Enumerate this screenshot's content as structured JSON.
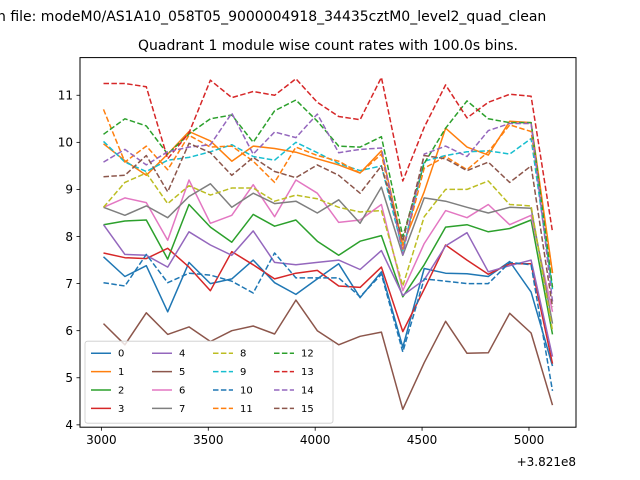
{
  "chart_data": {
    "type": "line",
    "suptitle": "n file: modeM0/AS1A10_058T05_9000004918_34435cztM0_level2_quad_clean",
    "title": "Quadrant 1 module wise count rates with 100.0s bins.",
    "xlabel": "",
    "ylabel": "",
    "x_offset_label": "+3.821e8",
    "xlim": [
      2900,
      5220
    ],
    "ylim": [
      3.95,
      11.8
    ],
    "xticks": [
      3000,
      3500,
      4000,
      4500,
      5000
    ],
    "yticks": [
      4,
      5,
      6,
      7,
      8,
      9,
      10,
      11
    ],
    "x": [
      3010,
      3110,
      3210,
      3310,
      3410,
      3510,
      3610,
      3710,
      3810,
      3910,
      4010,
      4110,
      4210,
      4310,
      4410,
      4510,
      4610,
      4710,
      4810,
      4910,
      5010,
      5110
    ],
    "series": [
      {
        "name": "0",
        "color": "#1f77b4",
        "dash": "solid",
        "values": [
          7.57,
          7.15,
          7.38,
          6.4,
          7.45,
          7.0,
          7.1,
          7.5,
          7.02,
          6.77,
          7.1,
          7.42,
          6.7,
          7.25,
          5.65,
          7.32,
          7.22,
          7.21,
          7.15,
          7.47,
          6.82,
          5.25
        ]
      },
      {
        "name": "1",
        "color": "#ff7f0e",
        "dash": "solid",
        "values": [
          9.97,
          9.61,
          9.3,
          9.75,
          10.23,
          10.03,
          9.6,
          9.92,
          9.87,
          9.79,
          9.65,
          9.52,
          9.35,
          9.82,
          7.82,
          8.95,
          10.3,
          9.9,
          9.73,
          10.45,
          10.42,
          7.23
        ]
      },
      {
        "name": "2",
        "color": "#2ca02c",
        "dash": "solid",
        "values": [
          8.25,
          8.33,
          8.35,
          7.52,
          8.68,
          8.2,
          7.88,
          8.47,
          8.22,
          8.35,
          7.9,
          7.6,
          7.9,
          8.02,
          6.72,
          7.4,
          8.2,
          8.25,
          8.1,
          8.17,
          8.35,
          5.92
        ]
      },
      {
        "name": "3",
        "color": "#d62728",
        "dash": "solid",
        "values": [
          7.65,
          7.55,
          7.53,
          7.75,
          7.35,
          6.85,
          7.68,
          7.4,
          7.1,
          7.22,
          7.28,
          6.95,
          6.92,
          7.35,
          5.98,
          6.88,
          7.82,
          7.5,
          7.2,
          7.42,
          7.42,
          5.3
        ]
      },
      {
        "name": "4",
        "color": "#9467bd",
        "dash": "solid",
        "values": [
          8.25,
          7.62,
          7.6,
          7.35,
          8.1,
          7.82,
          7.6,
          8.12,
          7.45,
          7.4,
          7.45,
          7.5,
          7.3,
          7.7,
          6.75,
          7.08,
          7.8,
          8.08,
          7.25,
          7.38,
          7.5,
          5.45
        ]
      },
      {
        "name": "5",
        "color": "#8c564b",
        "dash": "solid",
        "values": [
          6.15,
          5.7,
          6.38,
          5.92,
          6.08,
          5.77,
          6.0,
          6.1,
          5.93,
          6.65,
          6.0,
          5.7,
          5.88,
          5.97,
          4.33,
          5.32,
          6.2,
          5.52,
          5.53,
          6.37,
          5.95,
          4.42
        ]
      },
      {
        "name": "6",
        "color": "#e377c2",
        "dash": "solid",
        "values": [
          8.62,
          8.82,
          8.72,
          7.92,
          9.2,
          8.28,
          8.45,
          9.1,
          8.42,
          9.2,
          8.92,
          8.3,
          8.35,
          8.68,
          6.85,
          7.85,
          8.55,
          8.4,
          8.68,
          8.25,
          8.45,
          6.4
        ]
      },
      {
        "name": "7",
        "color": "#7f7f7f",
        "dash": "solid",
        "values": [
          8.62,
          8.45,
          8.65,
          8.4,
          8.85,
          9.12,
          8.62,
          8.92,
          8.7,
          8.75,
          8.5,
          8.78,
          8.28,
          9.05,
          7.6,
          8.82,
          8.75,
          8.62,
          8.5,
          8.62,
          8.6,
          6.15
        ]
      },
      {
        "name": "8",
        "color": "#bcbd22",
        "dash": "dashed",
        "values": [
          8.62,
          9.15,
          9.35,
          8.7,
          9.08,
          8.88,
          9.03,
          9.03,
          8.75,
          8.88,
          8.8,
          8.62,
          8.52,
          8.55,
          6.95,
          8.42,
          9.0,
          9.0,
          9.18,
          8.68,
          8.65,
          6.0
        ]
      },
      {
        "name": "9",
        "color": "#17becf",
        "dash": "dashed",
        "values": [
          10.02,
          9.58,
          9.38,
          9.62,
          9.68,
          9.8,
          9.95,
          9.7,
          9.62,
          10.0,
          9.78,
          9.55,
          9.4,
          9.5,
          7.7,
          9.6,
          9.72,
          9.8,
          9.82,
          9.75,
          10.08,
          6.88
        ]
      },
      {
        "name": "10",
        "color": "#1f77b4",
        "dash": "dashed",
        "values": [
          7.02,
          6.95,
          7.62,
          7.02,
          7.22,
          7.18,
          7.05,
          6.8,
          7.65,
          7.12,
          7.12,
          7.12,
          6.72,
          7.2,
          5.55,
          7.1,
          7.05,
          7.0,
          7.0,
          7.45,
          7.4,
          4.72
        ]
      },
      {
        "name": "11",
        "color": "#ff7f0e",
        "dash": "dashed",
        "values": [
          10.7,
          9.58,
          9.92,
          9.42,
          10.15,
          9.9,
          9.92,
          9.6,
          9.15,
          9.9,
          9.72,
          9.6,
          9.35,
          9.75,
          7.7,
          9.45,
          9.7,
          9.42,
          9.8,
          10.37,
          10.23,
          7.22
        ]
      },
      {
        "name": "12",
        "color": "#2ca02c",
        "dash": "dashed",
        "values": [
          10.17,
          10.5,
          10.35,
          9.75,
          10.18,
          10.5,
          10.58,
          10.0,
          10.67,
          10.9,
          10.45,
          9.92,
          9.9,
          10.12,
          8.0,
          9.55,
          10.3,
          10.88,
          10.5,
          10.42,
          10.42,
          6.92
        ]
      },
      {
        "name": "13",
        "color": "#d62728",
        "dash": "dashed",
        "values": [
          11.25,
          11.25,
          11.18,
          9.65,
          10.2,
          11.32,
          10.95,
          11.08,
          11.0,
          11.35,
          10.85,
          10.55,
          10.48,
          11.38,
          9.18,
          10.32,
          11.22,
          10.52,
          10.85,
          11.02,
          10.98,
          8.1
        ]
      },
      {
        "name": "14",
        "color": "#9467bd",
        "dash": "dashed",
        "values": [
          9.58,
          9.85,
          9.52,
          9.8,
          9.9,
          9.95,
          10.62,
          9.75,
          10.22,
          10.1,
          10.6,
          9.78,
          9.85,
          9.88,
          7.62,
          9.75,
          9.92,
          9.7,
          10.25,
          10.4,
          10.4,
          6.62
        ]
      },
      {
        "name": "15",
        "color": "#8c564b",
        "dash": "dashed",
        "values": [
          9.27,
          9.3,
          9.72,
          8.95,
          9.98,
          9.78,
          9.3,
          9.68,
          9.38,
          9.25,
          9.52,
          9.3,
          8.92,
          9.5,
          7.9,
          9.72,
          9.65,
          9.4,
          9.58,
          9.15,
          9.5,
          6.5
        ]
      }
    ],
    "legend": {
      "location": "lower-left",
      "columns": 4
    }
  }
}
